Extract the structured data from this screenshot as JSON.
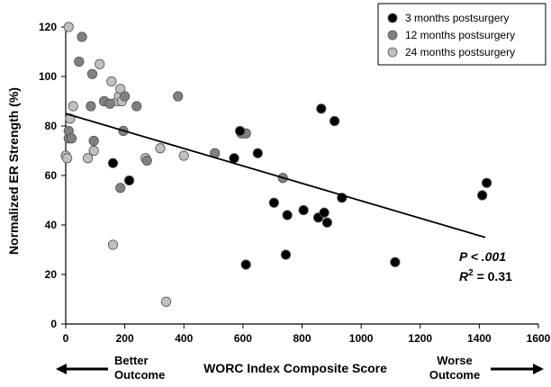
{
  "chart_data": {
    "type": "scatter",
    "title": "",
    "xlabel": "WORC Index Composite Score",
    "ylabel": "Normalized ER Strength (%)",
    "xlim": [
      0,
      1600
    ],
    "ylim": [
      0,
      120
    ],
    "xticks": [
      0,
      200,
      400,
      600,
      800,
      1000,
      1200,
      1400,
      1600
    ],
    "yticks": [
      0,
      20,
      40,
      60,
      80,
      100,
      120
    ],
    "grid": false,
    "legend_position": "top-right",
    "series": [
      {
        "name": "3 months postsurgery",
        "color": "#000000",
        "points": [
          [
            160,
            65
          ],
          [
            215,
            58
          ],
          [
            570,
            67
          ],
          [
            590,
            78
          ],
          [
            610,
            24
          ],
          [
            650,
            69
          ],
          [
            705,
            49
          ],
          [
            745,
            28
          ],
          [
            750,
            44
          ],
          [
            805,
            46
          ],
          [
            855,
            43
          ],
          [
            865,
            87
          ],
          [
            875,
            45
          ],
          [
            885,
            41
          ],
          [
            910,
            82
          ],
          [
            935,
            51
          ],
          [
            1115,
            25
          ],
          [
            1410,
            52
          ],
          [
            1425,
            57
          ]
        ]
      },
      {
        "name": "12 months postsurgery",
        "color": "#808080",
        "points": [
          [
            10,
            75
          ],
          [
            10,
            78
          ],
          [
            20,
            75
          ],
          [
            45,
            106
          ],
          [
            55,
            116
          ],
          [
            85,
            88
          ],
          [
            90,
            101
          ],
          [
            95,
            74
          ],
          [
            130,
            90
          ],
          [
            150,
            89
          ],
          [
            185,
            55
          ],
          [
            195,
            78
          ],
          [
            200,
            92
          ],
          [
            240,
            88
          ],
          [
            275,
            66
          ],
          [
            380,
            92
          ],
          [
            505,
            69
          ],
          [
            595,
            77
          ],
          [
            610,
            77
          ],
          [
            735,
            59
          ]
        ]
      },
      {
        "name": "24 months postsurgery",
        "color": "#c0c0c0",
        "points": [
          [
            0,
            68
          ],
          [
            5,
            67
          ],
          [
            10,
            120
          ],
          [
            15,
            83
          ],
          [
            25,
            88
          ],
          [
            75,
            67
          ],
          [
            95,
            70
          ],
          [
            115,
            105
          ],
          [
            130,
            90
          ],
          [
            155,
            98
          ],
          [
            160,
            32
          ],
          [
            175,
            90
          ],
          [
            180,
            92
          ],
          [
            185,
            95
          ],
          [
            190,
            90
          ],
          [
            270,
            67
          ],
          [
            320,
            71
          ],
          [
            340,
            9
          ],
          [
            400,
            68
          ]
        ]
      }
    ],
    "trendline": {
      "x": [
        0,
        1420
      ],
      "y": [
        85,
        35
      ]
    },
    "annotations": {
      "p_value": "P < .001",
      "r_squared_prefix": "R",
      "r_squared_sup": "2",
      "r_squared_value": " = 0.31"
    },
    "outcome_labels": {
      "left_line1": "Better",
      "left_line2": "Outcome",
      "right_line1": "Worse",
      "right_line2": "Outcome"
    }
  }
}
